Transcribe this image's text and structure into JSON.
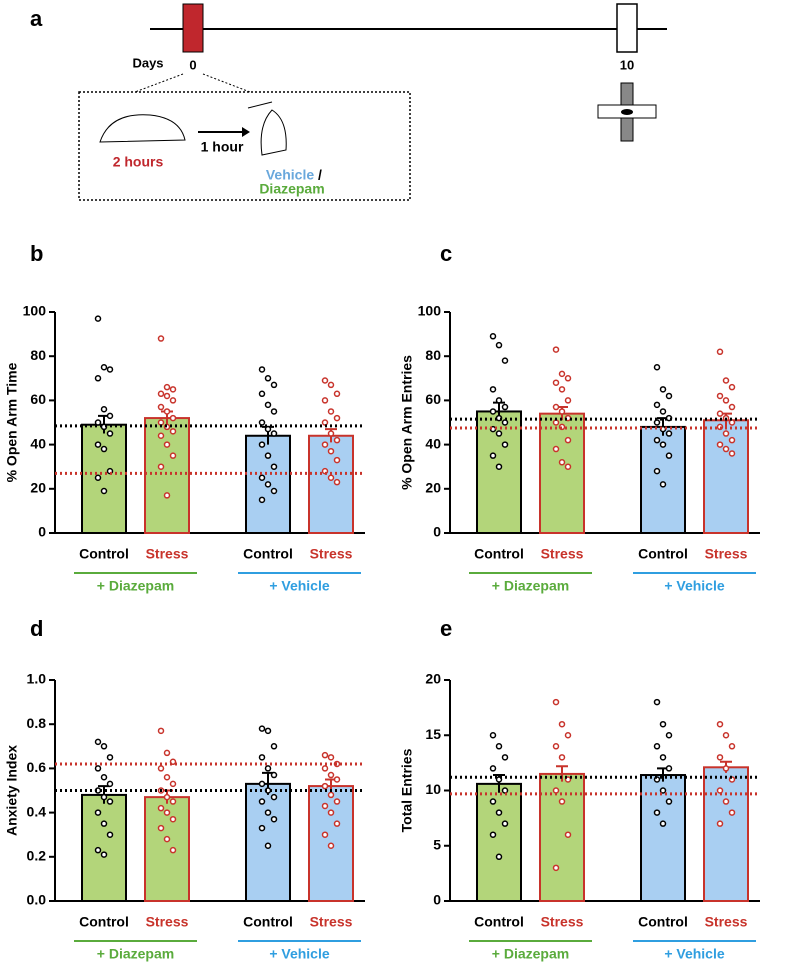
{
  "diagram": {
    "panel": "a",
    "days_label": "Days",
    "day_start": "0",
    "day_end": "10",
    "stress_duration": "2 hours",
    "delay": "1 hour",
    "treatment_vehicle": "Vehicle",
    "treatment_separator": "/",
    "treatment_diazepam": "Diazepam"
  },
  "chart_data": [
    {
      "type": "bar",
      "panel": "b",
      "y_label": "% Open Arm Time",
      "categories": [
        "Control",
        "Stress",
        "Control",
        "Stress"
      ],
      "groups": [
        {
          "name": "+ Diazepam",
          "color": "#5aab3c"
        },
        {
          "name": "+ Vehicle",
          "color": "#2f9ee0"
        }
      ],
      "values": [
        49,
        52,
        44,
        44
      ],
      "errors": [
        4,
        3,
        4,
        3
      ],
      "fill_colors": [
        "#b3d57a",
        "#b3d57a",
        "#a9cff2",
        "#a9cff2"
      ],
      "edge_colors": [
        "#000000",
        "#c8332b",
        "#000000",
        "#c8332b"
      ],
      "points": [
        [
          97,
          75,
          74,
          70,
          56,
          53,
          50,
          48,
          45,
          40,
          38,
          28,
          25,
          19
        ],
        [
          88,
          66,
          65,
          63,
          62,
          60,
          57,
          55,
          52,
          50,
          48,
          46,
          44,
          40,
          35,
          30,
          17
        ],
        [
          74,
          70,
          67,
          63,
          58,
          55,
          50,
          47,
          45,
          40,
          35,
          30,
          25,
          22,
          19,
          15
        ],
        [
          69,
          67,
          63,
          60,
          55,
          52,
          50,
          45,
          42,
          40,
          37,
          33,
          28,
          25,
          23
        ]
      ],
      "reference_lines": [
        {
          "value": 48.5,
          "color": "#000000"
        },
        {
          "value": 27,
          "color": "#c8332b"
        }
      ],
      "ylim": [
        0,
        100
      ],
      "yticks": [
        0,
        20,
        40,
        60,
        80,
        100
      ]
    },
    {
      "type": "bar",
      "panel": "c",
      "y_label": "% Open Arm Entries",
      "categories": [
        "Control",
        "Stress",
        "Control",
        "Stress"
      ],
      "groups": [
        {
          "name": "+ Diazepam",
          "color": "#5aab3c"
        },
        {
          "name": "+ Vehicle",
          "color": "#2f9ee0"
        }
      ],
      "values": [
        55,
        54,
        48,
        51
      ],
      "errors": [
        4,
        3,
        4,
        3
      ],
      "fill_colors": [
        "#b3d57a",
        "#b3d57a",
        "#a9cff2",
        "#a9cff2"
      ],
      "edge_colors": [
        "#000000",
        "#c8332b",
        "#000000",
        "#c8332b"
      ],
      "points": [
        [
          89,
          85,
          78,
          65,
          60,
          57,
          55,
          52,
          50,
          47,
          45,
          40,
          35,
          30
        ],
        [
          83,
          72,
          70,
          68,
          65,
          60,
          57,
          55,
          52,
          50,
          48,
          42,
          38,
          32,
          30
        ],
        [
          75,
          65,
          62,
          58,
          55,
          52,
          50,
          47,
          45,
          42,
          40,
          35,
          28,
          22
        ],
        [
          82,
          69,
          66,
          62,
          60,
          57,
          54,
          52,
          50,
          48,
          45,
          42,
          40,
          38,
          36
        ]
      ],
      "reference_lines": [
        {
          "value": 51.5,
          "color": "#000000"
        },
        {
          "value": 47.5,
          "color": "#c8332b"
        }
      ],
      "ylim": [
        0,
        100
      ],
      "yticks": [
        0,
        20,
        40,
        60,
        80,
        100
      ]
    },
    {
      "type": "bar",
      "panel": "d",
      "y_label": "Anxiety Index",
      "categories": [
        "Control",
        "Stress",
        "Control",
        "Stress"
      ],
      "groups": [
        {
          "name": "+ Diazepam",
          "color": "#5aab3c"
        },
        {
          "name": "+ Vehicle",
          "color": "#2f9ee0"
        }
      ],
      "values": [
        0.48,
        0.47,
        0.53,
        0.52
      ],
      "errors": [
        0.04,
        0.03,
        0.05,
        0.03
      ],
      "fill_colors": [
        "#b3d57a",
        "#b3d57a",
        "#a9cff2",
        "#a9cff2"
      ],
      "edge_colors": [
        "#000000",
        "#c8332b",
        "#000000",
        "#c8332b"
      ],
      "points": [
        [
          0.72,
          0.7,
          0.65,
          0.6,
          0.56,
          0.53,
          0.5,
          0.47,
          0.45,
          0.4,
          0.35,
          0.3,
          0.23,
          0.21
        ],
        [
          0.77,
          0.67,
          0.63,
          0.6,
          0.56,
          0.53,
          0.5,
          0.47,
          0.45,
          0.42,
          0.4,
          0.37,
          0.33,
          0.28,
          0.23
        ],
        [
          0.78,
          0.77,
          0.7,
          0.65,
          0.6,
          0.57,
          0.53,
          0.5,
          0.47,
          0.45,
          0.4,
          0.37,
          0.33,
          0.25
        ],
        [
          0.66,
          0.65,
          0.62,
          0.6,
          0.57,
          0.55,
          0.52,
          0.48,
          0.45,
          0.43,
          0.4,
          0.35,
          0.3,
          0.25
        ]
      ],
      "reference_lines": [
        {
          "value": 0.5,
          "color": "#000000"
        },
        {
          "value": 0.62,
          "color": "#c8332b"
        }
      ],
      "ylim": [
        0,
        1
      ],
      "yticks": [
        {
          "value": 0,
          "label": "0.0"
        },
        0.2,
        0.4,
        0.6,
        0.8,
        {
          "value": 1,
          "label": "1.0"
        }
      ]
    },
    {
      "type": "bar",
      "panel": "e",
      "y_label": "Total Entries",
      "categories": [
        "Control",
        "Stress",
        "Control",
        "Stress"
      ],
      "groups": [
        {
          "name": "+ Diazepam",
          "color": "#5aab3c"
        },
        {
          "name": "+ Vehicle",
          "color": "#2f9ee0"
        }
      ],
      "values": [
        10.6,
        11.5,
        11.4,
        12.1
      ],
      "errors": [
        0.8,
        0.7,
        0.6,
        0.5
      ],
      "fill_colors": [
        "#b3d57a",
        "#b3d57a",
        "#a9cff2",
        "#a9cff2"
      ],
      "edge_colors": [
        "#000000",
        "#c8332b",
        "#000000",
        "#c8332b"
      ],
      "points": [
        [
          15,
          14,
          13,
          12,
          11,
          10,
          9,
          8,
          7,
          6,
          4
        ],
        [
          18,
          16,
          15,
          14,
          13,
          11,
          10,
          9,
          6,
          3
        ],
        [
          18,
          16,
          15,
          14,
          13,
          12,
          11,
          10,
          9,
          8,
          7
        ],
        [
          16,
          15,
          14,
          13,
          12,
          11,
          10,
          9,
          8,
          7
        ]
      ],
      "reference_lines": [
        {
          "value": 11.2,
          "color": "#000000"
        },
        {
          "value": 9.7,
          "color": "#c8332b"
        }
      ],
      "ylim": [
        0,
        20
      ],
      "yticks": [
        0,
        5,
        10,
        15,
        20
      ]
    }
  ]
}
